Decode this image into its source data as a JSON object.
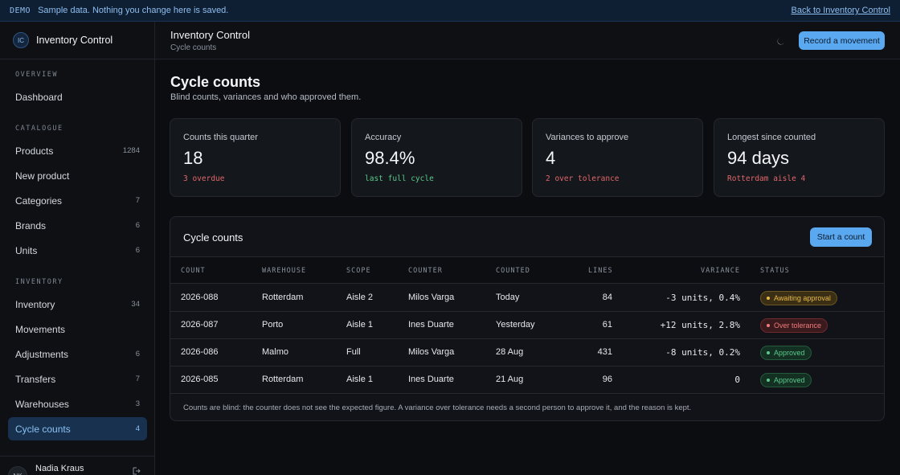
{
  "demo_bar": {
    "tag": "DEMO",
    "message": "Sample data. Nothing you change here is saved.",
    "back_link": "Back to Inventory Control"
  },
  "sidebar": {
    "brand_initials": "IC",
    "brand_name": "Inventory Control",
    "sections": [
      {
        "label": "OVERVIEW",
        "items": [
          {
            "label": "Dashboard",
            "count": ""
          }
        ]
      },
      {
        "label": "CATALOGUE",
        "items": [
          {
            "label": "Products",
            "count": "1284"
          },
          {
            "label": "New product",
            "count": ""
          },
          {
            "label": "Categories",
            "count": "7"
          },
          {
            "label": "Brands",
            "count": "6"
          },
          {
            "label": "Units",
            "count": "6"
          }
        ]
      },
      {
        "label": "INVENTORY",
        "items": [
          {
            "label": "Inventory",
            "count": "34"
          },
          {
            "label": "Movements",
            "count": ""
          },
          {
            "label": "Adjustments",
            "count": "6"
          },
          {
            "label": "Transfers",
            "count": "7"
          },
          {
            "label": "Warehouses",
            "count": "3"
          },
          {
            "label": "Cycle counts",
            "count": "4"
          }
        ]
      }
    ],
    "user": {
      "initials": "NK",
      "name": "Nadia Kraus",
      "action_icon": "sign-out-icon"
    }
  },
  "topbar": {
    "title": "Inventory Control",
    "subtitle": "Cycle counts",
    "theme_icon": "moon-icon",
    "primary_button": "Record a movement"
  },
  "page": {
    "title": "Cycle counts",
    "subtitle": "Blind counts, variances and who approved them."
  },
  "stats": [
    {
      "label": "Counts this quarter",
      "value": "18",
      "note": "3 overdue",
      "tone": "red"
    },
    {
      "label": "Accuracy",
      "value": "98.4%",
      "note": "last full cycle",
      "tone": "green"
    },
    {
      "label": "Variances to approve",
      "value": "4",
      "note": "2 over tolerance",
      "tone": "red"
    },
    {
      "label": "Longest since counted",
      "value": "94 days",
      "note": "Rotterdam aisle 4",
      "tone": "red"
    }
  ],
  "panel": {
    "title": "Cycle counts",
    "button": "Start a count",
    "columns": [
      "COUNT",
      "WAREHOUSE",
      "SCOPE",
      "COUNTER",
      "COUNTED",
      "LINES",
      "VARIANCE",
      "STATUS"
    ],
    "rows": [
      {
        "count": "2026-088",
        "warehouse": "Rotterdam",
        "scope": "Aisle 2",
        "counter": "Milos Varga",
        "counted": "Today",
        "lines": "84",
        "variance": "-3 units, 0.4%",
        "status": "Awaiting approval",
        "status_tone": "amber"
      },
      {
        "count": "2026-087",
        "warehouse": "Porto",
        "scope": "Aisle 1",
        "counter": "Ines Duarte",
        "counted": "Yesterday",
        "lines": "61",
        "variance": "+12 units, 2.8%",
        "status": "Over tolerance",
        "status_tone": "red"
      },
      {
        "count": "2026-086",
        "warehouse": "Malmo",
        "scope": "Full",
        "counter": "Milos Varga",
        "counted": "28 Aug",
        "lines": "431",
        "variance": "-8 units, 0.2%",
        "status": "Approved",
        "status_tone": "green"
      },
      {
        "count": "2026-085",
        "warehouse": "Rotterdam",
        "scope": "Aisle 1",
        "counter": "Ines Duarte",
        "counted": "21 Aug",
        "lines": "96",
        "variance": "0",
        "status": "Approved",
        "status_tone": "green"
      }
    ],
    "footnote": "Counts are blind: the counter does not see the expected figure. A variance over tolerance needs a second person to approve it, and the reason is kept."
  },
  "colors": {
    "accent": "#5aa8f0",
    "active_nav_bg": "#17314f",
    "status_amber": "#e9b949",
    "status_red": "#ef7b7e",
    "status_green": "#5bc98b"
  }
}
